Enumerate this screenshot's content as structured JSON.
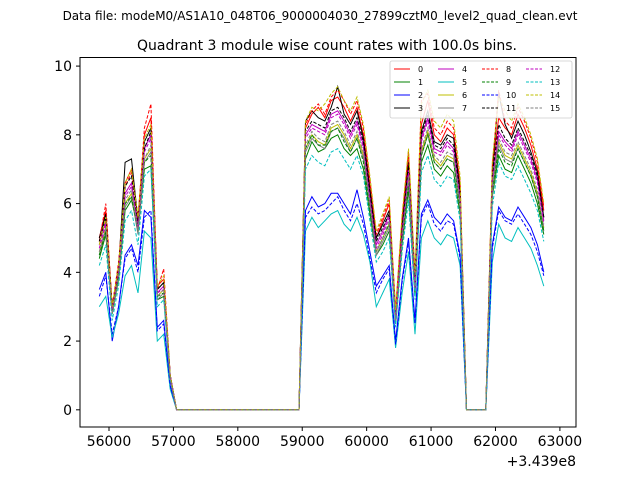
{
  "header": {
    "file_text": "Data file: modeM0/AS1A10_048T06_9000004030_27899cztM0_level2_quad_clean.evt"
  },
  "chart_data": {
    "type": "line",
    "title": "Quadrant 3 module wise count rates with 100.0s bins.",
    "xlabel": "",
    "ylabel": "",
    "x_offset_label": "+3.439e8",
    "xlim": [
      55550,
      63250
    ],
    "ylim": [
      -0.5,
      10.25
    ],
    "xticks": [
      56000,
      57000,
      58000,
      59000,
      60000,
      61000,
      62000,
      63000
    ],
    "yticks": [
      0,
      2,
      4,
      6,
      8,
      10
    ],
    "legend_position": "top-right",
    "x": [
      55850,
      55950,
      56050,
      56150,
      56250,
      56350,
      56450,
      56550,
      56650,
      56750,
      56850,
      56950,
      57050,
      57150,
      57250,
      57350,
      57450,
      57550,
      57650,
      57750,
      57850,
      57950,
      58050,
      58150,
      58250,
      58350,
      58450,
      58550,
      58650,
      58750,
      58850,
      58950,
      59050,
      59150,
      59250,
      59350,
      59450,
      59550,
      59650,
      59750,
      59850,
      59950,
      60050,
      60150,
      60250,
      60350,
      60450,
      60550,
      60650,
      60750,
      60850,
      60950,
      61050,
      61150,
      61250,
      61350,
      61450,
      61550,
      61650,
      61750,
      61850,
      61950,
      62050,
      62150,
      62250,
      62350,
      62450,
      62550,
      62650,
      62750
    ],
    "series": [
      {
        "name": "0",
        "color": "#ff0000",
        "dash": false,
        "values": [
          5.0,
          5.8,
          3.0,
          4.2,
          6.6,
          7.0,
          5.6,
          8.0,
          8.5,
          3.6,
          3.8,
          1.0,
          0,
          0,
          0,
          0,
          0,
          0,
          0,
          0,
          0,
          0,
          0,
          0,
          0,
          0,
          0,
          0,
          0,
          0,
          0,
          0,
          8.2,
          8.6,
          8.8,
          8.5,
          9.0,
          9.1,
          8.8,
          8.4,
          8.8,
          8.0,
          6.5,
          5.0,
          5.5,
          6.0,
          2.8,
          5.5,
          7.4,
          3.8,
          8.3,
          9.0,
          8.0,
          7.8,
          8.2,
          8.0,
          6.5,
          0,
          0,
          0,
          0,
          7.0,
          8.5,
          8.2,
          8.0,
          8.6,
          8.2,
          7.7,
          7.0,
          5.8
        ]
      },
      {
        "name": "1",
        "color": "#008000",
        "dash": false,
        "values": [
          4.4,
          5.1,
          2.8,
          3.8,
          5.8,
          6.1,
          5.3,
          7.0,
          7.1,
          3.2,
          3.3,
          0.9,
          0,
          0,
          0,
          0,
          0,
          0,
          0,
          0,
          0,
          0,
          0,
          0,
          0,
          0,
          0,
          0,
          0,
          0,
          0,
          0,
          7.3,
          7.8,
          7.5,
          7.6,
          7.9,
          8.0,
          7.6,
          7.4,
          7.6,
          7.0,
          5.7,
          4.5,
          4.8,
          5.2,
          2.5,
          4.8,
          6.4,
          3.3,
          7.2,
          7.7,
          7.0,
          6.8,
          7.1,
          6.9,
          5.7,
          0,
          0,
          0,
          0,
          6.2,
          7.4,
          7.0,
          6.9,
          7.4,
          7.0,
          6.6,
          6.0,
          5.1
        ]
      },
      {
        "name": "2",
        "color": "#0000ff",
        "dash": false,
        "values": [
          3.5,
          4.0,
          2.0,
          3.0,
          4.5,
          4.8,
          4.2,
          5.8,
          5.6,
          2.4,
          2.6,
          0.7,
          0,
          0,
          0,
          0,
          0,
          0,
          0,
          0,
          0,
          0,
          0,
          0,
          0,
          0,
          0,
          0,
          0,
          0,
          0,
          0,
          5.8,
          6.2,
          5.9,
          6.0,
          6.3,
          6.3,
          6.0,
          5.7,
          6.4,
          5.6,
          4.6,
          3.6,
          3.9,
          4.2,
          2.0,
          3.8,
          5.0,
          2.6,
          5.7,
          6.1,
          5.6,
          5.4,
          5.7,
          5.5,
          4.5,
          0,
          0,
          0,
          0,
          4.8,
          5.9,
          5.6,
          5.5,
          5.9,
          5.6,
          5.3,
          4.8,
          4.0
        ]
      },
      {
        "name": "3",
        "color": "#000000",
        "dash": false,
        "values": [
          5.0,
          5.7,
          3.0,
          4.1,
          7.2,
          7.3,
          5.5,
          7.8,
          8.2,
          3.5,
          3.7,
          1.0,
          0,
          0,
          0,
          0,
          0,
          0,
          0,
          0,
          0,
          0,
          0,
          0,
          0,
          0,
          0,
          0,
          0,
          0,
          0,
          0,
          8.4,
          8.7,
          8.5,
          8.4,
          8.8,
          9.4,
          8.6,
          8.3,
          8.7,
          7.9,
          6.4,
          5.0,
          5.4,
          5.8,
          2.7,
          5.3,
          7.2,
          3.7,
          8.1,
          8.7,
          7.8,
          7.7,
          8.0,
          7.9,
          6.4,
          0,
          0,
          0,
          0,
          6.9,
          9.2,
          8.3,
          7.9,
          8.4,
          8.0,
          7.5,
          6.9,
          5.6
        ]
      },
      {
        "name": "4",
        "color": "#bf00bf",
        "dash": false,
        "values": [
          4.8,
          5.5,
          2.9,
          4.0,
          6.3,
          6.6,
          5.3,
          7.6,
          8.0,
          3.4,
          3.6,
          1.0,
          0,
          0,
          0,
          0,
          0,
          0,
          0,
          0,
          0,
          0,
          0,
          0,
          0,
          0,
          0,
          0,
          0,
          0,
          0,
          0,
          8.0,
          8.3,
          8.2,
          8.1,
          8.6,
          8.7,
          8.4,
          8.0,
          8.4,
          7.7,
          6.2,
          4.8,
          5.2,
          5.7,
          2.6,
          5.2,
          7.0,
          3.6,
          7.9,
          8.5,
          7.6,
          7.5,
          7.8,
          7.6,
          6.2,
          0,
          0,
          0,
          0,
          6.7,
          8.1,
          7.8,
          7.6,
          8.1,
          7.7,
          7.3,
          6.7,
          5.5
        ]
      },
      {
        "name": "5",
        "color": "#00bfbf",
        "dash": false,
        "values": [
          3.0,
          3.3,
          2.1,
          2.8,
          3.9,
          4.2,
          3.4,
          5.2,
          5.0,
          2.0,
          2.2,
          0.6,
          0,
          0,
          0,
          0,
          0,
          0,
          0,
          0,
          0,
          0,
          0,
          0,
          0,
          0,
          0,
          0,
          0,
          0,
          0,
          0,
          5.2,
          5.6,
          5.3,
          5.5,
          5.7,
          5.8,
          5.4,
          5.2,
          5.6,
          5.1,
          4.3,
          3.0,
          3.4,
          3.8,
          1.8,
          3.4,
          4.6,
          2.2,
          5.0,
          5.5,
          5.0,
          4.8,
          5.1,
          5.0,
          4.2,
          0,
          0,
          0,
          0,
          4.3,
          5.4,
          5.0,
          4.9,
          5.3,
          5.0,
          4.7,
          4.2,
          3.6
        ]
      },
      {
        "name": "6",
        "color": "#bfbf00",
        "dash": false,
        "values": [
          4.6,
          5.3,
          2.8,
          4.0,
          6.0,
          6.3,
          5.2,
          7.3,
          7.6,
          3.3,
          3.5,
          0.9,
          0,
          0,
          0,
          0,
          0,
          0,
          0,
          0,
          0,
          0,
          0,
          0,
          0,
          0,
          0,
          0,
          0,
          0,
          0,
          0,
          7.6,
          8.0,
          7.8,
          7.7,
          8.2,
          8.3,
          8.0,
          7.6,
          8.0,
          7.4,
          6.0,
          4.6,
          5.0,
          5.4,
          2.6,
          5.0,
          6.7,
          3.4,
          7.5,
          8.1,
          7.3,
          7.1,
          7.4,
          7.3,
          6.0,
          0,
          0,
          0,
          0,
          6.4,
          7.8,
          7.4,
          7.3,
          7.7,
          7.3,
          6.9,
          6.3,
          5.3
        ]
      },
      {
        "name": "7",
        "color": "#808080",
        "dash": false,
        "values": [
          4.5,
          5.2,
          2.8,
          3.9,
          5.9,
          6.2,
          5.1,
          7.2,
          7.5,
          3.2,
          3.4,
          0.9,
          0,
          0,
          0,
          0,
          0,
          0,
          0,
          0,
          0,
          0,
          0,
          0,
          0,
          0,
          0,
          0,
          0,
          0,
          0,
          0,
          7.5,
          7.9,
          7.7,
          7.6,
          8.1,
          8.2,
          7.9,
          7.5,
          7.9,
          7.3,
          5.9,
          4.5,
          4.9,
          5.3,
          2.5,
          4.9,
          6.6,
          3.4,
          7.4,
          8.0,
          7.2,
          7.0,
          7.3,
          7.2,
          5.9,
          0,
          0,
          0,
          0,
          6.3,
          7.7,
          7.3,
          7.2,
          7.6,
          7.2,
          6.8,
          6.2,
          5.2
        ]
      },
      {
        "name": "8",
        "color": "#ff0000",
        "dash": true,
        "values": [
          4.9,
          6.0,
          3.0,
          4.3,
          6.5,
          6.9,
          5.5,
          8.2,
          8.9,
          3.5,
          4.1,
          1.0,
          0,
          0,
          0,
          0,
          0,
          0,
          0,
          0,
          0,
          0,
          0,
          0,
          0,
          0,
          0,
          0,
          0,
          0,
          0,
          0,
          8.3,
          8.7,
          8.9,
          8.6,
          9.1,
          9.3,
          9.0,
          8.6,
          9.0,
          8.2,
          6.7,
          5.1,
          5.6,
          6.1,
          2.9,
          5.6,
          7.5,
          3.9,
          9.0,
          9.2,
          8.2,
          8.0,
          8.4,
          8.2,
          6.6,
          0,
          0,
          0,
          0,
          7.1,
          9.3,
          8.4,
          8.2,
          8.8,
          8.4,
          7.9,
          7.2,
          5.9
        ]
      },
      {
        "name": "9",
        "color": "#008000",
        "dash": true,
        "values": [
          4.5,
          5.2,
          2.8,
          3.9,
          6.0,
          6.2,
          5.2,
          7.2,
          7.4,
          3.3,
          3.4,
          0.9,
          0,
          0,
          0,
          0,
          0,
          0,
          0,
          0,
          0,
          0,
          0,
          0,
          0,
          0,
          0,
          0,
          0,
          0,
          0,
          0,
          7.6,
          8.0,
          7.7,
          7.7,
          8.1,
          8.2,
          7.8,
          7.5,
          7.9,
          7.2,
          5.9,
          4.6,
          5.0,
          5.4,
          2.6,
          4.9,
          6.6,
          3.4,
          7.4,
          8.0,
          7.2,
          7.0,
          7.3,
          7.2,
          5.9,
          0,
          0,
          0,
          0,
          6.4,
          7.6,
          7.2,
          7.1,
          7.6,
          7.2,
          6.8,
          6.2,
          5.2
        ]
      },
      {
        "name": "10",
        "color": "#0000ff",
        "dash": true,
        "values": [
          3.3,
          3.9,
          2.2,
          3.0,
          4.4,
          4.7,
          4.0,
          5.6,
          5.8,
          2.3,
          2.5,
          0.7,
          0,
          0,
          0,
          0,
          0,
          0,
          0,
          0,
          0,
          0,
          0,
          0,
          0,
          0,
          0,
          0,
          0,
          0,
          0,
          0,
          5.6,
          5.9,
          5.7,
          5.8,
          6.0,
          6.2,
          5.8,
          5.5,
          6.0,
          5.4,
          4.4,
          3.4,
          3.8,
          4.1,
          1.9,
          3.7,
          4.9,
          2.5,
          5.6,
          6.0,
          5.4,
          5.2,
          5.5,
          5.4,
          4.4,
          0,
          0,
          0,
          0,
          4.7,
          5.8,
          5.5,
          5.4,
          5.7,
          5.4,
          5.1,
          4.6,
          3.9
        ]
      },
      {
        "name": "11",
        "color": "#000000",
        "dash": true,
        "values": [
          4.9,
          5.6,
          2.9,
          4.1,
          6.5,
          6.8,
          5.4,
          7.6,
          8.1,
          3.5,
          3.7,
          1.0,
          0,
          0,
          0,
          0,
          0,
          0,
          0,
          0,
          0,
          0,
          0,
          0,
          0,
          0,
          0,
          0,
          0,
          0,
          0,
          0,
          8.1,
          8.4,
          8.3,
          8.2,
          8.7,
          8.8,
          8.5,
          8.1,
          8.5,
          7.8,
          6.3,
          4.9,
          5.3,
          5.7,
          2.7,
          5.3,
          7.1,
          3.7,
          8.0,
          8.6,
          7.7,
          7.6,
          7.9,
          7.7,
          6.3,
          0,
          0,
          0,
          0,
          6.8,
          8.3,
          7.9,
          7.7,
          8.2,
          7.8,
          7.4,
          6.8,
          5.6
        ]
      },
      {
        "name": "12",
        "color": "#bf00bf",
        "dash": true,
        "values": [
          4.7,
          5.4,
          2.9,
          4.0,
          6.2,
          6.5,
          5.3,
          7.5,
          7.9,
          3.4,
          3.5,
          0.9,
          0,
          0,
          0,
          0,
          0,
          0,
          0,
          0,
          0,
          0,
          0,
          0,
          0,
          0,
          0,
          0,
          0,
          0,
          0,
          0,
          7.9,
          8.2,
          8.1,
          8.0,
          8.5,
          8.6,
          8.3,
          7.9,
          8.3,
          7.6,
          6.1,
          4.7,
          5.1,
          5.6,
          2.6,
          5.1,
          6.9,
          3.5,
          7.8,
          8.4,
          7.5,
          7.4,
          7.7,
          7.5,
          6.1,
          0,
          0,
          0,
          0,
          6.6,
          8.0,
          7.7,
          7.5,
          8.0,
          7.6,
          7.2,
          6.6,
          5.4
        ]
      },
      {
        "name": "13",
        "color": "#00bfbf",
        "dash": true,
        "values": [
          4.2,
          4.8,
          2.6,
          3.6,
          5.5,
          5.8,
          4.8,
          6.8,
          7.0,
          3.0,
          3.2,
          0.9,
          0,
          0,
          0,
          0,
          0,
          0,
          0,
          0,
          0,
          0,
          0,
          0,
          0,
          0,
          0,
          0,
          0,
          0,
          0,
          0,
          7.0,
          7.4,
          7.2,
          7.1,
          7.5,
          7.6,
          7.3,
          7.0,
          7.4,
          6.8,
          5.5,
          4.3,
          4.6,
          5.0,
          2.4,
          4.6,
          6.1,
          3.2,
          6.9,
          7.4,
          6.7,
          6.5,
          6.8,
          6.7,
          5.5,
          0,
          0,
          0,
          0,
          5.9,
          7.2,
          6.8,
          6.7,
          7.1,
          6.7,
          6.3,
          5.8,
          4.9
        ]
      },
      {
        "name": "14",
        "color": "#bfbf00",
        "dash": true,
        "values": [
          4.8,
          5.6,
          3.0,
          4.2,
          6.6,
          7.0,
          5.6,
          7.9,
          8.3,
          3.6,
          3.9,
          1.0,
          0,
          0,
          0,
          0,
          0,
          0,
          0,
          0,
          0,
          0,
          0,
          0,
          0,
          0,
          0,
          0,
          0,
          0,
          0,
          0,
          8.4,
          8.8,
          8.7,
          8.9,
          9.2,
          9.4,
          9.0,
          8.7,
          9.1,
          8.3,
          6.8,
          5.2,
          5.7,
          6.2,
          2.9,
          5.7,
          7.6,
          4.0,
          8.9,
          9.3,
          8.4,
          8.2,
          8.6,
          8.4,
          6.8,
          0,
          0,
          0,
          0,
          7.2,
          9.1,
          8.7,
          8.4,
          8.9,
          8.5,
          8.0,
          7.3,
          6.0
        ]
      },
      {
        "name": "15",
        "color": "#808080",
        "dash": true,
        "values": [
          4.6,
          5.3,
          2.8,
          3.9,
          6.1,
          6.4,
          5.2,
          7.3,
          7.7,
          3.3,
          3.5,
          0.9,
          0,
          0,
          0,
          0,
          0,
          0,
          0,
          0,
          0,
          0,
          0,
          0,
          0,
          0,
          0,
          0,
          0,
          0,
          0,
          0,
          7.7,
          8.1,
          7.9,
          7.8,
          8.3,
          8.4,
          8.1,
          7.7,
          8.1,
          7.5,
          6.0,
          4.6,
          5.0,
          5.5,
          2.6,
          5.0,
          6.8,
          3.5,
          7.6,
          8.2,
          7.4,
          7.2,
          7.5,
          7.4,
          6.0,
          0,
          0,
          0,
          0,
          6.5,
          7.9,
          7.5,
          7.4,
          7.8,
          7.4,
          7.0,
          6.4,
          5.3
        ]
      }
    ]
  }
}
